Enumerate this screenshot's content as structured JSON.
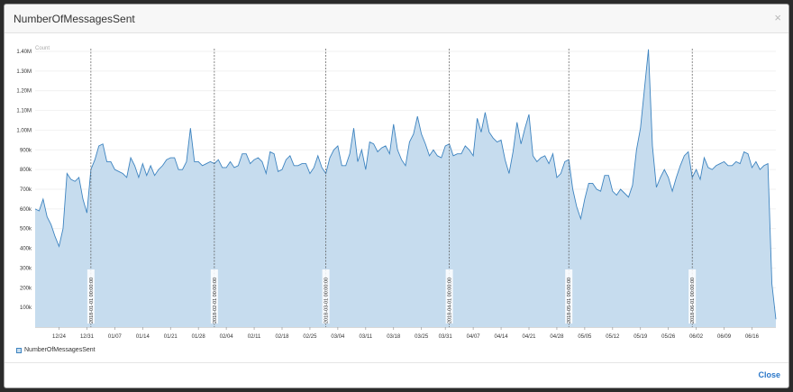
{
  "dialog": {
    "title": "NumberOfMessagesSent",
    "close_icon": "×",
    "close_label": "Close"
  },
  "legend": {
    "label": "NumberOfMessagesSent"
  },
  "colors": {
    "fill": "#c6dcee",
    "line": "#3e84c0",
    "marker": "#555555"
  },
  "chart_data": {
    "type": "area",
    "title": "NumberOfMessagesSent",
    "ylabel": "Count",
    "ylim": [
      0,
      1400000
    ],
    "yticks": [
      100000,
      200000,
      300000,
      400000,
      500000,
      600000,
      700000,
      800000,
      900000,
      1000000,
      1100000,
      1200000,
      1300000,
      1400000
    ],
    "ytick_labels": [
      "100k",
      "200k",
      "300k",
      "400k",
      "500k",
      "600k",
      "700k",
      "800k",
      "900k",
      "1.00M",
      "1.10M",
      "1.20M",
      "1.30M",
      "1.40M"
    ],
    "x_start": "2017-12-18",
    "x_end": "2018-06-19",
    "xtick_labels": [
      "12/24",
      "12/31",
      "01/07",
      "01/14",
      "01/21",
      "01/28",
      "02/04",
      "02/11",
      "02/18",
      "02/25",
      "03/04",
      "03/11",
      "03/18",
      "03/25",
      "03/31",
      "04/07",
      "04/14",
      "04/21",
      "04/28",
      "05/05",
      "05/12",
      "05/19",
      "05/26",
      "06/02",
      "06/09",
      "06/16"
    ],
    "xtick_days": [
      6,
      13,
      20,
      27,
      34,
      41,
      48,
      55,
      62,
      69,
      76,
      83,
      90,
      97,
      103,
      110,
      117,
      124,
      131,
      138,
      145,
      152,
      159,
      166,
      173,
      180
    ],
    "month_markers": [
      {
        "label": "2018-01-01 00:00:00",
        "day": 14
      },
      {
        "label": "2018-02-01 00:00:00",
        "day": 45
      },
      {
        "label": "2018-03-01 00:00:00",
        "day": 73
      },
      {
        "label": "2018-04-01 00:00:00",
        "day": 104
      },
      {
        "label": "2018-05-01 00:00:00",
        "day": 134
      },
      {
        "label": "2018-06-01 00:00:00",
        "day": 165
      }
    ],
    "series": [
      {
        "name": "NumberOfMessagesSent",
        "values": [
          600000,
          590000,
          650000,
          560000,
          520000,
          460000,
          410000,
          500000,
          780000,
          750000,
          740000,
          760000,
          650000,
          580000,
          800000,
          850000,
          920000,
          930000,
          840000,
          840000,
          800000,
          790000,
          780000,
          760000,
          860000,
          820000,
          760000,
          830000,
          770000,
          820000,
          770000,
          800000,
          820000,
          850000,
          860000,
          860000,
          800000,
          800000,
          840000,
          1010000,
          840000,
          840000,
          820000,
          830000,
          840000,
          830000,
          850000,
          810000,
          810000,
          840000,
          810000,
          820000,
          880000,
          880000,
          830000,
          850000,
          860000,
          840000,
          780000,
          890000,
          880000,
          790000,
          800000,
          850000,
          870000,
          820000,
          820000,
          830000,
          830000,
          780000,
          810000,
          870000,
          810000,
          780000,
          860000,
          900000,
          920000,
          820000,
          820000,
          880000,
          1010000,
          840000,
          900000,
          800000,
          940000,
          930000,
          890000,
          910000,
          920000,
          880000,
          1030000,
          900000,
          850000,
          820000,
          940000,
          980000,
          1070000,
          980000,
          930000,
          870000,
          900000,
          870000,
          860000,
          920000,
          930000,
          870000,
          880000,
          880000,
          920000,
          900000,
          870000,
          1060000,
          990000,
          1090000,
          990000,
          960000,
          940000,
          950000,
          850000,
          780000,
          890000,
          1040000,
          930000,
          1010000,
          1080000,
          870000,
          840000,
          860000,
          870000,
          830000,
          880000,
          760000,
          780000,
          840000,
          850000,
          700000,
          610000,
          550000,
          650000,
          730000,
          730000,
          700000,
          690000,
          770000,
          770000,
          690000,
          670000,
          700000,
          680000,
          660000,
          720000,
          900000,
          1010000,
          1210000,
          1410000,
          920000,
          710000,
          760000,
          800000,
          760000,
          690000,
          760000,
          820000,
          870000,
          890000,
          760000,
          800000,
          750000,
          860000,
          810000,
          800000,
          820000,
          830000,
          840000,
          820000,
          820000,
          840000,
          830000,
          890000,
          880000,
          810000,
          840000,
          800000,
          820000,
          830000,
          220000,
          40000
        ]
      }
    ]
  }
}
